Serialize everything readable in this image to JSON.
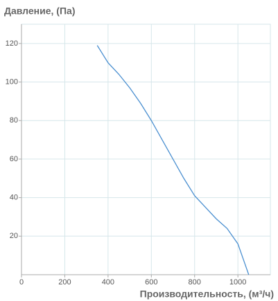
{
  "chart_data": {
    "type": "line",
    "title": "Давление, (Па)",
    "x_label": "Производительность, (м³/ч)",
    "x": [
      350,
      400,
      450,
      500,
      550,
      600,
      650,
      700,
      750,
      800,
      850,
      900,
      950,
      1000,
      1050
    ],
    "series": [
      {
        "name": "Давление",
        "color": "#4a8fd0",
        "values": [
          119,
          110,
          104,
          97,
          89,
          80,
          70,
          60,
          50,
          41,
          35,
          29,
          24,
          16,
          0
        ]
      }
    ],
    "xlim": [
      0,
      1150
    ],
    "xticks": [
      0,
      200,
      400,
      600,
      800,
      1000
    ],
    "ylim": [
      0,
      130
    ],
    "yticks": [
      20,
      40,
      60,
      80,
      100,
      120
    ],
    "grid": true
  }
}
